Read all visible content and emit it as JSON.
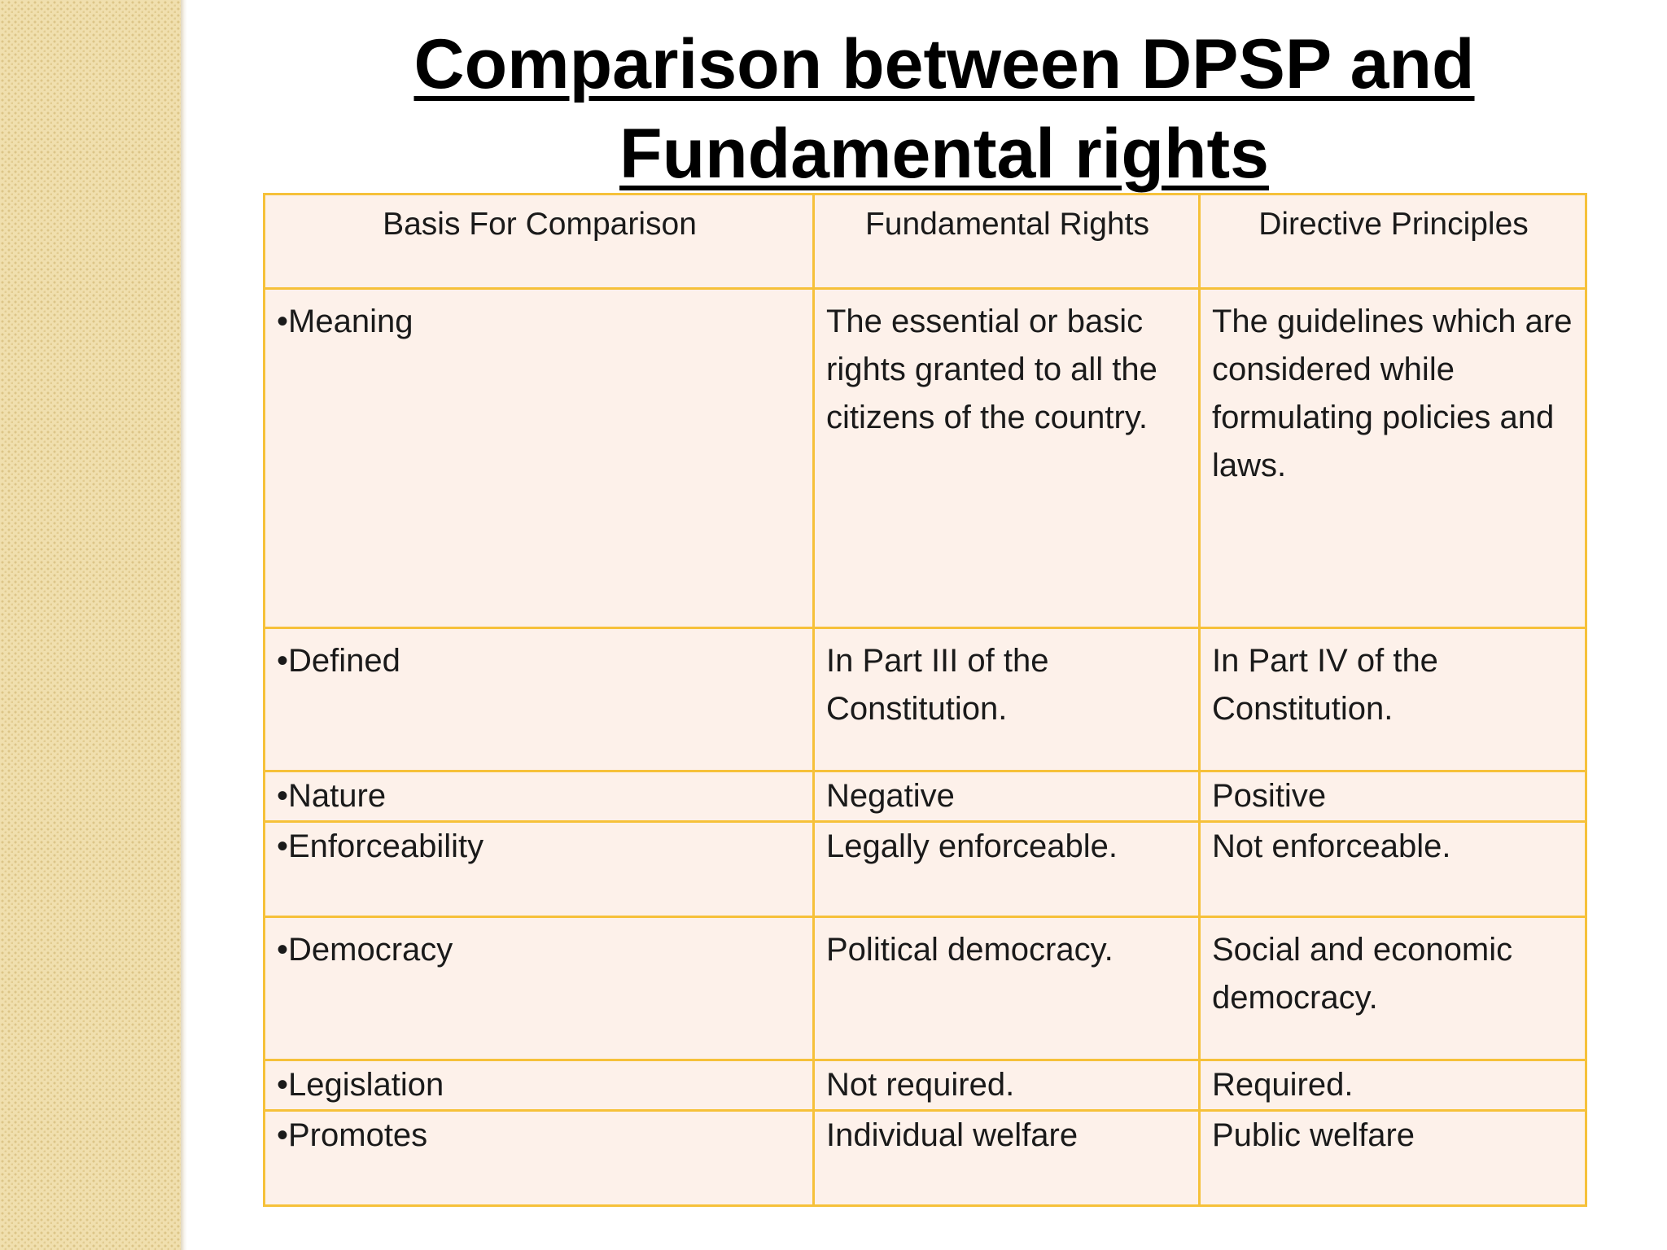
{
  "title": {
    "line1": "Comparison between DPSP and",
    "line2": "Fundamental rights"
  },
  "table": {
    "headers": [
      "Basis For Comparison",
      "Fundamental Rights",
      "Directive Principles"
    ],
    "rows": [
      [
        "•Meaning",
        "The essential or basic rights granted to all the citizens of the country.",
        "The guidelines which are considered while formulating policies and laws."
      ],
      [
        "•Defined",
        "In Part III of the Constitution.",
        "In Part IV of the Constitution."
      ],
      [
        "•Nature",
        "Negative",
        "Positive"
      ],
      [
        "•Enforceability",
        "Legally enforceable.",
        "Not enforceable."
      ],
      [
        "•Democracy",
        "Political democracy.",
        "Social and economic democracy."
      ],
      [
        "•Legislation",
        "Not required.",
        "Required."
      ],
      [
        "•Promotes",
        "Individual welfare",
        "Public welfare"
      ]
    ]
  },
  "colors": {
    "border": "#f6c13a",
    "cell_background": "#fdf1ea",
    "side_panel": "#f0dfae"
  }
}
